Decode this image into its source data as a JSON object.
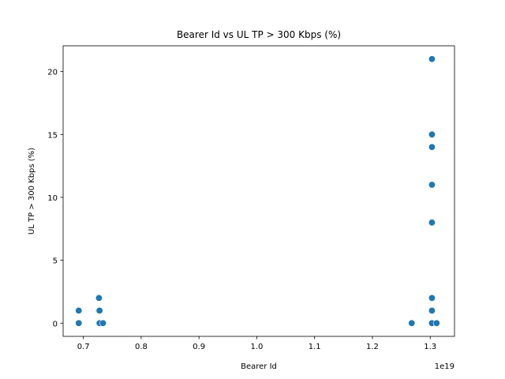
{
  "chart_data": {
    "type": "scatter",
    "title": "Bearer Id vs UL TP > 300 Kbps (%)",
    "xlabel": "Bearer Id",
    "ylabel": "UL TP > 300 Kbps (%)",
    "x_offset_text": "1e19",
    "x_scale": 1e+19,
    "xlim": [
      0.665,
      1.342
    ],
    "ylim": [
      -1.05,
      22.05
    ],
    "xticks": [
      0.7,
      0.8,
      0.9,
      1.0,
      1.1,
      1.2,
      1.3
    ],
    "xtick_labels": [
      "0.7",
      "0.8",
      "0.9",
      "1.0",
      "1.1",
      "1.2",
      "1.3"
    ],
    "yticks": [
      0,
      5,
      10,
      15,
      20
    ],
    "ytick_labels": [
      "0",
      "5",
      "10",
      "15",
      "20"
    ],
    "grid": false,
    "legend": "none",
    "marker_color": "#1f77b4",
    "points": [
      {
        "x": 0.692,
        "y": 1
      },
      {
        "x": 0.692,
        "y": 0
      },
      {
        "x": 0.727,
        "y": 2
      },
      {
        "x": 0.727,
        "y": 1
      },
      {
        "x": 0.728,
        "y": 1
      },
      {
        "x": 0.728,
        "y": 0
      },
      {
        "x": 0.734,
        "y": 0
      },
      {
        "x": 1.268,
        "y": 0
      },
      {
        "x": 1.303,
        "y": 21
      },
      {
        "x": 1.303,
        "y": 15
      },
      {
        "x": 1.303,
        "y": 14
      },
      {
        "x": 1.303,
        "y": 11
      },
      {
        "x": 1.303,
        "y": 8
      },
      {
        "x": 1.303,
        "y": 2
      },
      {
        "x": 1.303,
        "y": 1
      },
      {
        "x": 1.303,
        "y": 0
      },
      {
        "x": 1.311,
        "y": 0
      }
    ]
  }
}
